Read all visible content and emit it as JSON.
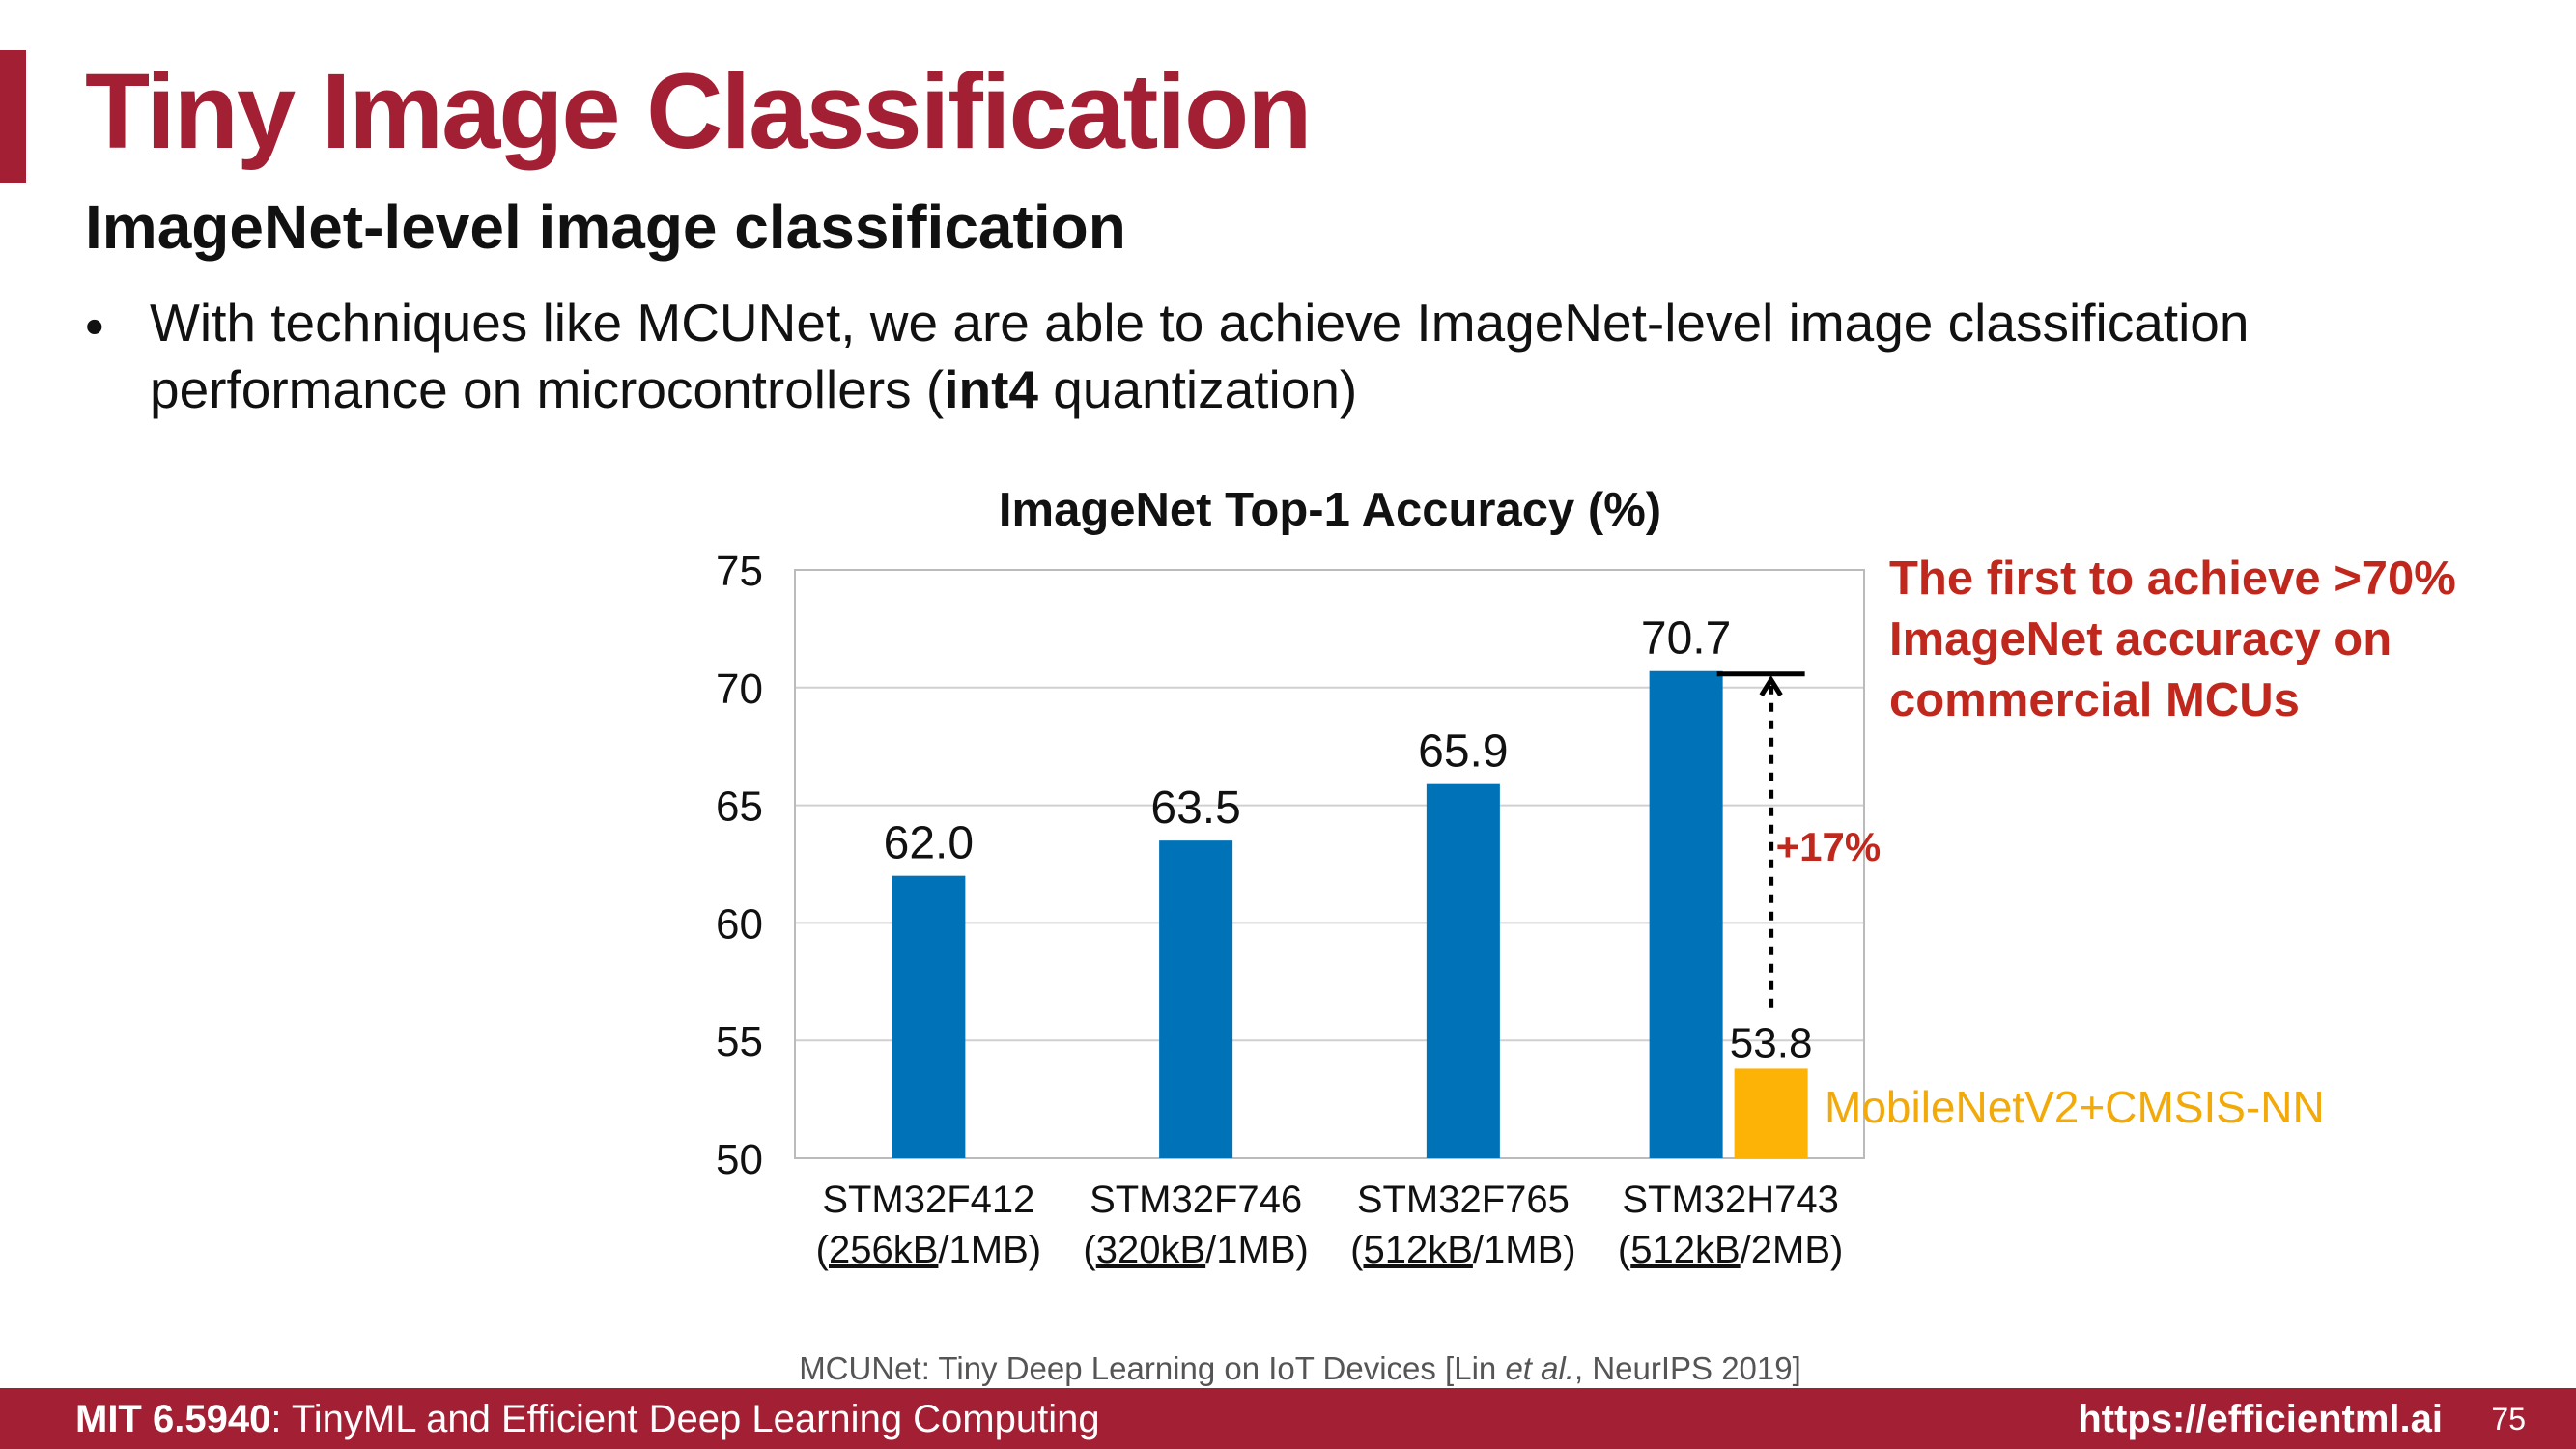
{
  "slide": {
    "title": "Tiny Image Classification",
    "subtitle": "ImageNet-level image classification",
    "bullet": {
      "marker": "•",
      "text_before": "With techniques like MCUNet, we are able to achieve ImageNet-level image classification performance on microcontrollers (",
      "bold": "int4",
      "text_after": " quantization)"
    },
    "annotation": {
      "headline": "The first to achieve >70% ImageNet accuracy on commercial MCUs",
      "improvement": "+17%"
    },
    "citation": {
      "before": "MCUNet: Tiny Deep Learning on IoT Devices [Lin ",
      "italic": "et al.",
      "after": ", NeurIPS 2019]"
    },
    "footer": {
      "course_code": "MIT 6.5940",
      "course_name": ": TinyML and Efficient Deep Learning Computing",
      "url": "https://efficientml.ai",
      "page": "75"
    }
  },
  "colors": {
    "brand": "#a31f34",
    "annotation": "#c0281d",
    "mcunet_bar": "#0072b8",
    "baseline_bar": "#fdb305",
    "baseline_label": "#f2a90a"
  },
  "chart_data": {
    "type": "bar",
    "title": "ImageNet Top-1 Accuracy (%)",
    "categories": [
      {
        "line1": "STM32F412",
        "mem": "256kB",
        "flash": "/1MB)"
      },
      {
        "line1": "STM32F746",
        "mem": "320kB",
        "flash": "/1MB)"
      },
      {
        "line1": "STM32F765",
        "mem": "512kB",
        "flash": "/1MB)"
      },
      {
        "line1": "STM32H743",
        "mem": "512kB",
        "flash": "/2MB)"
      }
    ],
    "series": [
      {
        "values": [
          62.0,
          63.5,
          65.9,
          70.7
        ],
        "labels": [
          "62.0",
          "63.5",
          "65.9",
          "70.7"
        ]
      },
      {
        "name": "MobileNetV2+CMSIS-NN",
        "values": [
          null,
          null,
          null,
          53.8
        ],
        "labels": [
          null,
          null,
          null,
          "53.8"
        ]
      }
    ],
    "yticks": [
      50,
      55,
      60,
      65,
      70,
      75
    ],
    "ylim": [
      50,
      75
    ],
    "grid": true
  }
}
